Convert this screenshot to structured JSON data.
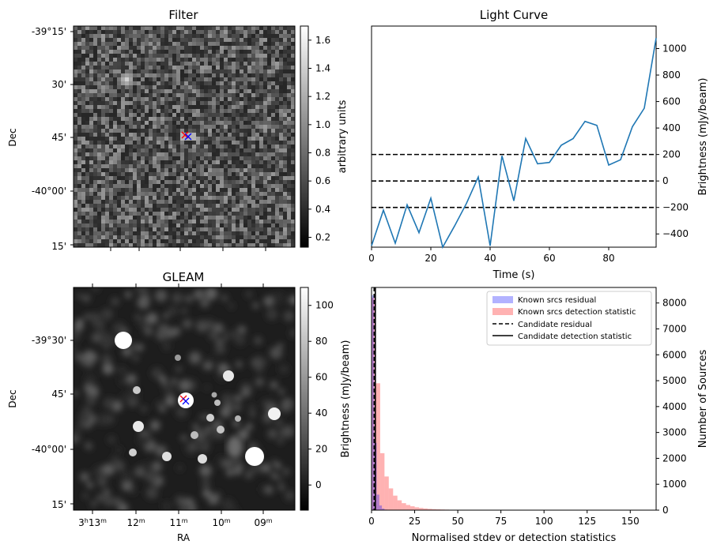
{
  "panels": {
    "filter": {
      "title": "Filter",
      "ylabel": "Dec",
      "yticks": [
        "-39°15'",
        "30'",
        "45'",
        "-40°00'",
        "15'"
      ],
      "colorbar": {
        "label": "arbitrary units",
        "ticks": [
          "0.2",
          "0.4",
          "0.6",
          "0.8",
          "1.0",
          "1.2",
          "1.4",
          "1.6"
        ],
        "range": [
          0.13,
          1.7
        ]
      }
    },
    "gleam": {
      "title": "GLEAM",
      "ylabel": "Dec",
      "xlabel": "RA",
      "yticks": [
        "-39°30'",
        "45'",
        "-40°00'",
        "15'"
      ],
      "colorbar": {
        "label": "Brightness (mJy/beam)",
        "ticks": [
          "0",
          "20",
          "40",
          "60",
          "80",
          "100"
        ],
        "range": [
          -14,
          110
        ]
      }
    }
  },
  "chart_data": [
    {
      "type": "line",
      "title": "Light Curve",
      "xlabel": "Time (s)",
      "ylabel": "Brightness (mJy/beam)",
      "xlim": [
        0,
        96
      ],
      "ylim": [
        -500,
        1170
      ],
      "xticks": [
        0,
        20,
        40,
        60,
        80
      ],
      "yticks": [
        -400,
        -200,
        0,
        200,
        400,
        600,
        800,
        1000
      ],
      "x": [
        0,
        4,
        8,
        12,
        16,
        20,
        24,
        28,
        32,
        36,
        40,
        44,
        48,
        52,
        56,
        60,
        64,
        68,
        72,
        76,
        80,
        84,
        88,
        92,
        96
      ],
      "y": [
        -490,
        -220,
        -470,
        -180,
        -390,
        -130,
        -500,
        -340,
        -170,
        30,
        -490,
        190,
        -150,
        320,
        130,
        140,
        270,
        320,
        450,
        420,
        120,
        160,
        410,
        550,
        1080
      ],
      "hlines": [
        {
          "y": 200,
          "style": "dashed"
        },
        {
          "y": 0,
          "style": "dashed"
        },
        {
          "y": -200,
          "style": "dashed"
        }
      ],
      "line_color": "#1f77b4"
    },
    {
      "type": "bar",
      "xlabel": "Normalised stdev or detection statistics",
      "ylabel": "Number of Sources",
      "xlim": [
        0,
        165
      ],
      "ylim": [
        0,
        8600
      ],
      "xticks": [
        0,
        25,
        50,
        75,
        100,
        125,
        150
      ],
      "yticks": [
        0,
        1000,
        2000,
        3000,
        4000,
        5000,
        6000,
        7000,
        8000
      ],
      "legend_position": "top-right",
      "series": [
        {
          "name": "Known srcs residual",
          "color": "#0000ff",
          "alpha": 0.3,
          "bin_width": 1.5,
          "bin_start": 0,
          "values": [
            8300,
            2600,
            600,
            180,
            60,
            20,
            8
          ]
        },
        {
          "name": "Known srcs detection statistic",
          "color": "#ff0000",
          "alpha": 0.3,
          "bin_width": 2.5,
          "bin_start": 0,
          "values": [
            8200,
            4900,
            2200,
            1300,
            840,
            560,
            380,
            270,
            200,
            150,
            110,
            85,
            65,
            50,
            40,
            30,
            25,
            20,
            15,
            12,
            10,
            8,
            7,
            6,
            5,
            4,
            4,
            3,
            3,
            2,
            2,
            2,
            2,
            2,
            2,
            1,
            1,
            1,
            1,
            1,
            1,
            1,
            1,
            1,
            1,
            1,
            1,
            1,
            1,
            1,
            1,
            1,
            1,
            1,
            1,
            1,
            1,
            1,
            1,
            1,
            1,
            1,
            1,
            1
          ]
        }
      ],
      "vlines": [
        {
          "name": "Candidate residual",
          "x": 1.5,
          "style": "dashed"
        },
        {
          "name": "Candidate detection statistic",
          "x": 2.2,
          "style": "solid"
        }
      ]
    }
  ]
}
